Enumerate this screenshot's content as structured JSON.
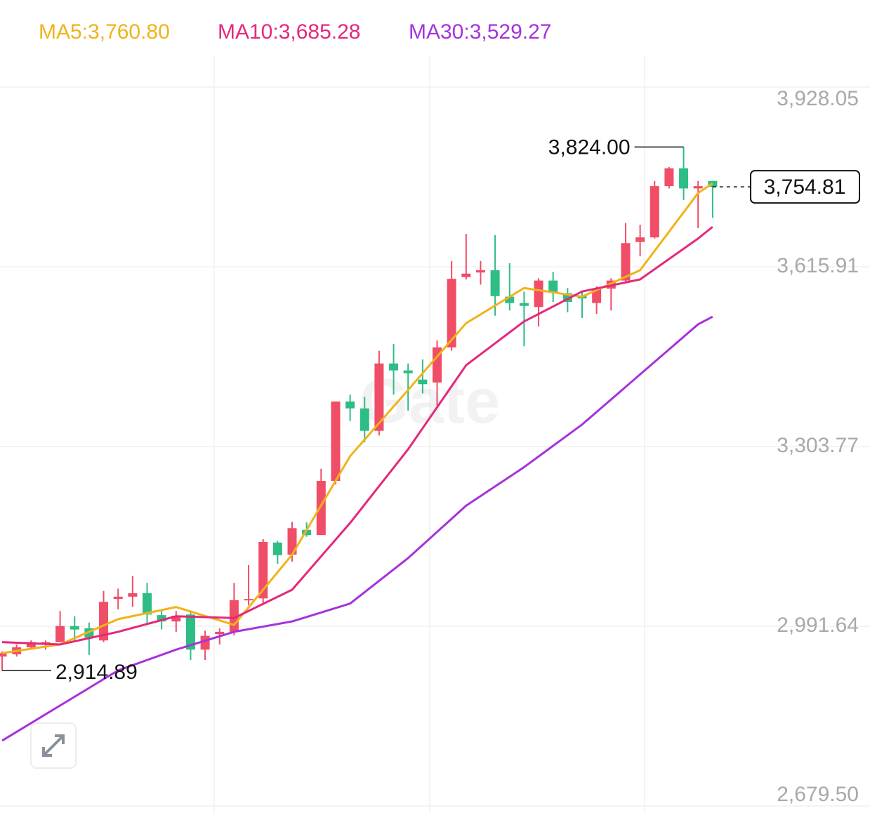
{
  "chart_data": {
    "type": "candlestick",
    "categories": [
      null,
      null,
      null,
      null,
      null,
      null,
      null,
      null,
      null,
      null,
      null,
      null,
      null,
      null,
      null,
      null,
      null,
      null,
      null,
      null,
      null,
      null,
      null,
      null,
      null,
      null,
      null,
      null,
      null,
      null,
      null,
      null,
      null,
      null,
      null,
      null,
      null,
      null,
      null,
      null,
      null,
      null,
      null,
      null,
      null,
      null,
      null,
      null,
      null,
      null
    ],
    "open": [
      2939,
      2943,
      2955,
      2960,
      2964,
      2992,
      2988,
      2967,
      3039,
      3043,
      3049,
      3011,
      3000,
      3012,
      2951,
      2978,
      2982,
      3037,
      3040,
      3137,
      3116,
      3159,
      3150,
      3244,
      3382,
      3370,
      3331,
      3448,
      3436,
      3420,
      3415,
      3476,
      3598,
      3606,
      3610,
      3564,
      3553,
      3546,
      3592,
      3570,
      3565,
      3553,
      3578,
      3592,
      3659,
      3667,
      3756,
      3787,
      3752,
      3765
    ],
    "high": [
      2948,
      2960,
      2967,
      2967,
      3018,
      3009,
      2998,
      3053,
      3057,
      3079,
      3067,
      3018,
      3018,
      3018,
      2984,
      2988,
      3067,
      3098,
      3143,
      3140,
      3173,
      3172,
      3265,
      3382,
      3394,
      3390,
      3470,
      3482,
      3448,
      3455,
      3488,
      3626,
      3673,
      3626,
      3671,
      3622,
      3573,
      3596,
      3607,
      3579,
      3575,
      3582,
      3596,
      3692,
      3689,
      3765,
      3789,
      3824,
      3765,
      3765
    ],
    "low": [
      2914.89,
      2939,
      2951,
      2951,
      2964,
      2964,
      2942,
      2964,
      3021,
      3025,
      2994,
      2986,
      2982,
      2933,
      2933,
      2960,
      2976,
      3028,
      3031,
      3100,
      3104,
      3147,
      3150,
      3238,
      3348,
      3311,
      3323,
      3394,
      3366,
      3396,
      3375,
      3470,
      3594,
      3585,
      3531,
      3540,
      3478,
      3512,
      3555,
      3537,
      3527,
      3534,
      3540,
      3589,
      3634,
      3665,
      3752,
      3732,
      3683,
      3701
    ],
    "close": [
      2945,
      2955,
      2964,
      2964,
      2992,
      2986,
      2972,
      3034,
      3043,
      3049,
      3012,
      3000,
      3010,
      2951,
      2975,
      2982,
      3037,
      3039,
      3138,
      3115,
      3162,
      3150,
      3244,
      3382,
      3370,
      3331,
      3448,
      3436,
      3431,
      3412,
      3476,
      3595,
      3604,
      3610,
      3565,
      3553,
      3548,
      3592,
      3571,
      3555,
      3561,
      3578,
      3592,
      3657,
      3667,
      3756,
      3787,
      3752,
      3756,
      3754.81
    ],
    "up_color": "#f04d67",
    "down_color": "#2ebd85",
    "series": [
      {
        "name": "MA5:3,760.80",
        "color": "#f0b31a",
        "x": [
          0,
          4,
          8,
          12,
          16,
          20,
          24,
          28,
          32,
          36,
          40,
          44,
          48,
          49
        ],
        "values": [
          2945,
          2960,
          3004,
          3025,
          2994,
          3116,
          3287,
          3402,
          3518,
          3579,
          3564,
          3610,
          3744,
          3760.8
        ]
      },
      {
        "name": "MA10:3,685.28",
        "color": "#e4287c",
        "x": [
          0,
          4,
          8,
          12,
          16,
          20,
          24,
          28,
          32,
          36,
          40,
          44,
          48,
          49
        ],
        "values": [
          2964,
          2960,
          2982,
          3009,
          3006,
          3055,
          3171,
          3299,
          3445,
          3521,
          3573,
          3594,
          3665,
          3685.28
        ]
      },
      {
        "name": "MA30:3,529.27",
        "color": "#a632dc",
        "x": [
          0,
          4,
          8,
          12,
          16,
          20,
          24,
          28,
          32,
          36,
          40,
          44,
          48,
          49
        ],
        "values": [
          2793,
          2854,
          2915,
          2951,
          2982,
          3000,
          3031,
          3110,
          3201,
          3268,
          3342,
          3429,
          3516,
          3529.27
        ]
      }
    ],
    "annotations": {
      "high": "3,824.00",
      "low": "2,914.89",
      "last": "3,754.81"
    },
    "ylim": [
      2679.5,
      3928.05
    ],
    "yticks": [
      {
        "value": 2679.5,
        "label": "2,679.50"
      },
      {
        "value": 2991.64,
        "label": "2,991.64"
      },
      {
        "value": 3303.77,
        "label": "3,303.77"
      },
      {
        "value": 3615.91,
        "label": "3,615.91"
      },
      {
        "value": 3928.05,
        "label": "3,928.05"
      }
    ],
    "grid": true,
    "watermark": "Gate"
  }
}
